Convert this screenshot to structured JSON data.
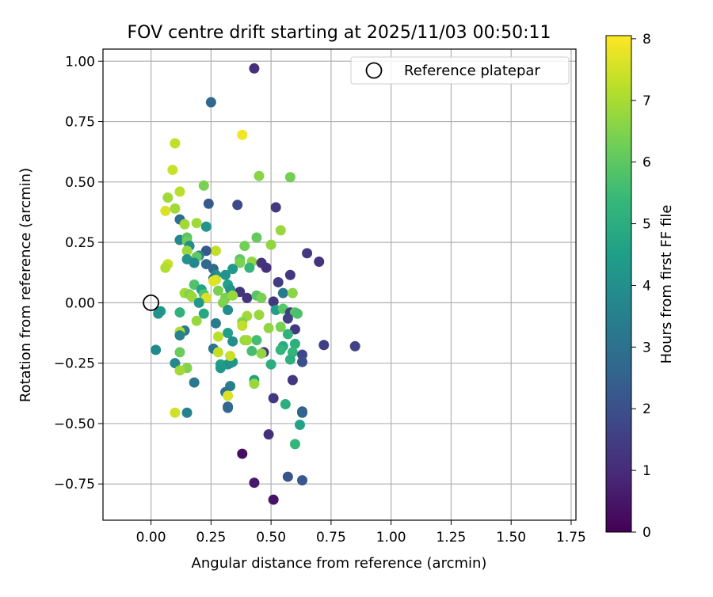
{
  "chart_data": {
    "type": "scatter",
    "title": "FOV centre drift starting at 2025/11/03 00:50:11",
    "xlabel": "Angular distance from reference (arcmin)",
    "ylabel": "Rotation from reference (arcmin)",
    "xlim": [
      -0.2,
      1.77
    ],
    "ylim": [
      -0.9,
      1.05
    ],
    "xticks": [
      "0.00",
      "0.25",
      "0.50",
      "0.75",
      "1.00",
      "1.25",
      "1.50",
      "1.75"
    ],
    "yticks": [
      "1.00",
      "0.75",
      "0.50",
      "0.25",
      "0.00",
      "−0.25",
      "−0.50",
      "−0.75"
    ],
    "grid": true,
    "legend": {
      "label": "Reference platepar",
      "placement": "top-right",
      "marker": "open-circle"
    },
    "reference_point": {
      "x": 0.0,
      "y": 0.0
    },
    "colorbar": {
      "label": "Hours from first FF file",
      "min": 0,
      "max": 8.05,
      "ticks": [
        "0",
        "1",
        "2",
        "3",
        "4",
        "5",
        "6",
        "7",
        "8"
      ],
      "colormap": "viridis",
      "stops": [
        "#440154",
        "#482878",
        "#3e4989",
        "#31688e",
        "#26828e",
        "#1f9e89",
        "#35b779",
        "#6ece58",
        "#b5de2b",
        "#fde725"
      ]
    },
    "points": [
      [
        0.43,
        0.97,
        1.1
      ],
      [
        0.25,
        0.83,
        2.7
      ],
      [
        0.38,
        0.695,
        7.9
      ],
      [
        0.1,
        0.66,
        7.3
      ],
      [
        0.09,
        0.55,
        7.4
      ],
      [
        0.45,
        0.525,
        6.6
      ],
      [
        0.58,
        0.52,
        6.3
      ],
      [
        0.22,
        0.485,
        6.4
      ],
      [
        0.12,
        0.46,
        7.2
      ],
      [
        0.07,
        0.435,
        6.9
      ],
      [
        0.1,
        0.39,
        6.9
      ],
      [
        0.06,
        0.38,
        7.6
      ],
      [
        0.24,
        0.41,
        2.3
      ],
      [
        0.36,
        0.405,
        1.8
      ],
      [
        0.52,
        0.395,
        1.3
      ],
      [
        0.12,
        0.345,
        2.9
      ],
      [
        0.14,
        0.325,
        6.9
      ],
      [
        0.19,
        0.33,
        6.9
      ],
      [
        0.23,
        0.315,
        4.2
      ],
      [
        0.54,
        0.3,
        6.8
      ],
      [
        0.12,
        0.26,
        3.7
      ],
      [
        0.15,
        0.27,
        5.9
      ],
      [
        0.44,
        0.27,
        6.1
      ],
      [
        0.15,
        0.255,
        6.2
      ],
      [
        0.16,
        0.235,
        3.9
      ],
      [
        0.5,
        0.24,
        6.7
      ],
      [
        0.39,
        0.235,
        6.3
      ],
      [
        0.15,
        0.215,
        6.8
      ],
      [
        0.27,
        0.215,
        7.3
      ],
      [
        0.65,
        0.205,
        1.3
      ],
      [
        0.7,
        0.17,
        1.2
      ],
      [
        0.23,
        0.215,
        2.2
      ],
      [
        0.2,
        0.195,
        3.6
      ],
      [
        0.15,
        0.18,
        4.1
      ],
      [
        0.19,
        0.19,
        6.0
      ],
      [
        0.42,
        0.17,
        6.7
      ],
      [
        0.37,
        0.18,
        6.0
      ],
      [
        0.37,
        0.165,
        6.4
      ],
      [
        0.46,
        0.165,
        1.2
      ],
      [
        0.48,
        0.145,
        1.1
      ],
      [
        0.07,
        0.16,
        7.4
      ],
      [
        0.06,
        0.145,
        7.1
      ],
      [
        0.23,
        0.16,
        2.8
      ],
      [
        0.26,
        0.14,
        2.7
      ],
      [
        0.18,
        0.165,
        3.8
      ],
      [
        0.34,
        0.14,
        4.3
      ],
      [
        0.41,
        0.145,
        5.3
      ],
      [
        0.58,
        0.115,
        1.3
      ],
      [
        0.27,
        0.115,
        4.0
      ],
      [
        0.31,
        0.115,
        4.2
      ],
      [
        0.26,
        0.1,
        3.2
      ],
      [
        0.27,
        0.095,
        7.5
      ],
      [
        0.26,
        0.09,
        7.7
      ],
      [
        0.53,
        0.085,
        1.4
      ],
      [
        0.18,
        0.075,
        5.8
      ],
      [
        0.32,
        0.075,
        4.6
      ],
      [
        0.21,
        0.055,
        4.6
      ],
      [
        0.28,
        0.05,
        6.4
      ],
      [
        0.33,
        0.055,
        4.2
      ],
      [
        0.37,
        0.045,
        1.2
      ],
      [
        0.14,
        0.04,
        6.9
      ],
      [
        0.16,
        0.035,
        6.5
      ],
      [
        0.17,
        0.025,
        6.8
      ],
      [
        0.22,
        0.035,
        5.8
      ],
      [
        0.23,
        0.02,
        7.6
      ],
      [
        0.31,
        0.02,
        6.4
      ],
      [
        0.34,
        0.03,
        6.8
      ],
      [
        0.4,
        0.02,
        1.2
      ],
      [
        0.44,
        0.03,
        5.9
      ],
      [
        0.46,
        0.02,
        6.4
      ],
      [
        0.55,
        0.04,
        3.3
      ],
      [
        0.59,
        0.04,
        6.6
      ],
      [
        0.2,
        0.0,
        4.3
      ],
      [
        0.3,
        0.0,
        6.5
      ],
      [
        0.51,
        0.005,
        1.3
      ],
      [
        0.04,
        -0.035,
        4.3
      ],
      [
        0.03,
        -0.045,
        4.1
      ],
      [
        0.12,
        -0.04,
        5.2
      ],
      [
        0.22,
        -0.045,
        4.8
      ],
      [
        0.32,
        -0.03,
        3.9
      ],
      [
        0.52,
        -0.03,
        4.5
      ],
      [
        0.55,
        -0.025,
        5.9
      ],
      [
        0.58,
        -0.04,
        1.4
      ],
      [
        0.6,
        -0.04,
        5.9
      ],
      [
        0.45,
        -0.05,
        6.8
      ],
      [
        0.4,
        -0.055,
        6.9
      ],
      [
        0.61,
        -0.045,
        5.7
      ],
      [
        0.19,
        -0.075,
        6.8
      ],
      [
        0.27,
        -0.085,
        3.3
      ],
      [
        0.38,
        -0.08,
        6.5
      ],
      [
        0.38,
        -0.095,
        7.3
      ],
      [
        0.57,
        -0.065,
        1.6
      ],
      [
        0.49,
        -0.105,
        6.7
      ],
      [
        0.54,
        -0.1,
        6.4
      ],
      [
        0.14,
        -0.115,
        3.3
      ],
      [
        0.12,
        -0.12,
        7.1
      ],
      [
        0.6,
        -0.11,
        1.3
      ],
      [
        0.12,
        -0.135,
        3.6
      ],
      [
        0.32,
        -0.125,
        4.5
      ],
      [
        0.57,
        -0.13,
        5.2
      ],
      [
        0.28,
        -0.14,
        7.2
      ],
      [
        0.39,
        -0.155,
        6.8
      ],
      [
        0.34,
        -0.16,
        4.0
      ],
      [
        0.44,
        -0.155,
        5.6
      ],
      [
        0.4,
        -0.155,
        6.9
      ],
      [
        0.6,
        -0.17,
        5.1
      ],
      [
        0.72,
        -0.175,
        1.5
      ],
      [
        0.85,
        -0.18,
        1.6
      ],
      [
        0.02,
        -0.195,
        3.8
      ],
      [
        0.26,
        -0.19,
        3.1
      ],
      [
        0.12,
        -0.205,
        6.2
      ],
      [
        0.42,
        -0.2,
        5.6
      ],
      [
        0.47,
        -0.205,
        1.2
      ],
      [
        0.55,
        -0.18,
        4.9
      ],
      [
        0.54,
        -0.195,
        5.3
      ],
      [
        0.59,
        -0.205,
        5.3
      ],
      [
        0.28,
        -0.205,
        7.3
      ],
      [
        0.46,
        -0.21,
        6.7
      ],
      [
        0.63,
        -0.215,
        1.8
      ],
      [
        0.58,
        -0.235,
        5.1
      ],
      [
        0.1,
        -0.25,
        3.8
      ],
      [
        0.29,
        -0.255,
        4.5
      ],
      [
        0.32,
        -0.255,
        4.3
      ],
      [
        0.33,
        -0.25,
        4.0
      ],
      [
        0.34,
        -0.245,
        4.2
      ],
      [
        0.5,
        -0.255,
        5.0
      ],
      [
        0.63,
        -0.245,
        2.0
      ],
      [
        0.15,
        -0.27,
        6.5
      ],
      [
        0.12,
        -0.28,
        6.9
      ],
      [
        0.29,
        -0.27,
        4.3
      ],
      [
        0.33,
        -0.22,
        7.4
      ],
      [
        0.59,
        -0.32,
        1.3
      ],
      [
        0.43,
        -0.32,
        4.5
      ],
      [
        0.43,
        -0.335,
        6.8
      ],
      [
        0.18,
        -0.33,
        3.2
      ],
      [
        0.33,
        -0.345,
        3.4
      ],
      [
        0.31,
        -0.37,
        3.0
      ],
      [
        0.32,
        -0.385,
        7.6
      ],
      [
        0.51,
        -0.395,
        1.3
      ],
      [
        0.56,
        -0.42,
        5.0
      ],
      [
        0.32,
        -0.43,
        2.6
      ],
      [
        0.32,
        -0.435,
        2.7
      ],
      [
        0.1,
        -0.455,
        7.5
      ],
      [
        0.15,
        -0.455,
        3.6
      ],
      [
        0.63,
        -0.45,
        2.4
      ],
      [
        0.63,
        -0.455,
        2.6
      ],
      [
        0.62,
        -0.505,
        4.6
      ],
      [
        0.49,
        -0.545,
        1.1
      ],
      [
        0.6,
        -0.585,
        5.3
      ],
      [
        0.38,
        -0.625,
        0.3
      ],
      [
        0.57,
        -0.72,
        2.1
      ],
      [
        0.63,
        -0.735,
        2.2
      ],
      [
        0.43,
        -0.745,
        0.6
      ],
      [
        0.51,
        -0.815,
        0.4
      ]
    ]
  }
}
